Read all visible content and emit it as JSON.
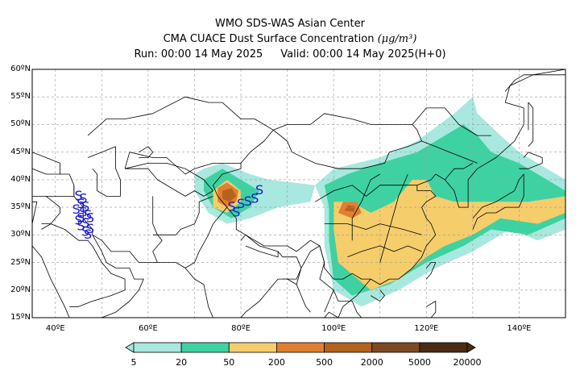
{
  "title": {
    "line1": "WMO SDS-WAS Asian Center",
    "line2": "CMA CUACE Dust Surface Concentration",
    "unit": "(μg/m³)",
    "run": "Run: 00:00 14 May 2025",
    "valid": "Valid: 00:00 14 May 2025(H+0)"
  },
  "map": {
    "lon_range": [
      35,
      150
    ],
    "lat_range": [
      15,
      60
    ],
    "lat_ticks": [
      {
        "value": 60,
        "label": "60ºN"
      },
      {
        "value": 55,
        "label": "55ºN"
      },
      {
        "value": 50,
        "label": "50ºN"
      },
      {
        "value": 45,
        "label": "45ºN"
      },
      {
        "value": 40,
        "label": "40ºN"
      },
      {
        "value": 35,
        "label": "35ºN"
      },
      {
        "value": 30,
        "label": "30ºN"
      },
      {
        "value": 25,
        "label": "25ºN"
      },
      {
        "value": 20,
        "label": "20ºN"
      },
      {
        "value": 15,
        "label": "15ºN"
      }
    ],
    "lon_ticks": [
      {
        "value": 40,
        "label": "40ºE"
      },
      {
        "value": 60,
        "label": "60ºE"
      },
      {
        "value": 80,
        "label": "80ºE"
      },
      {
        "value": 100,
        "label": "100ºE"
      },
      {
        "value": 120,
        "label": "120ºE"
      },
      {
        "value": 140,
        "label": "140ºE"
      }
    ],
    "grid": true,
    "station_symbol": "S",
    "station_color": "#1a1acc",
    "colorbar": {
      "labels": [
        "5",
        "20",
        "50",
        "200",
        "500",
        "2000",
        "5000",
        "20000"
      ],
      "colors": [
        "#a8e8de",
        "#3ed2a2",
        "#f5cd6b",
        "#e07f2f",
        "#b5631c",
        "#7d4a22",
        "#4a2d12"
      ]
    }
  }
}
